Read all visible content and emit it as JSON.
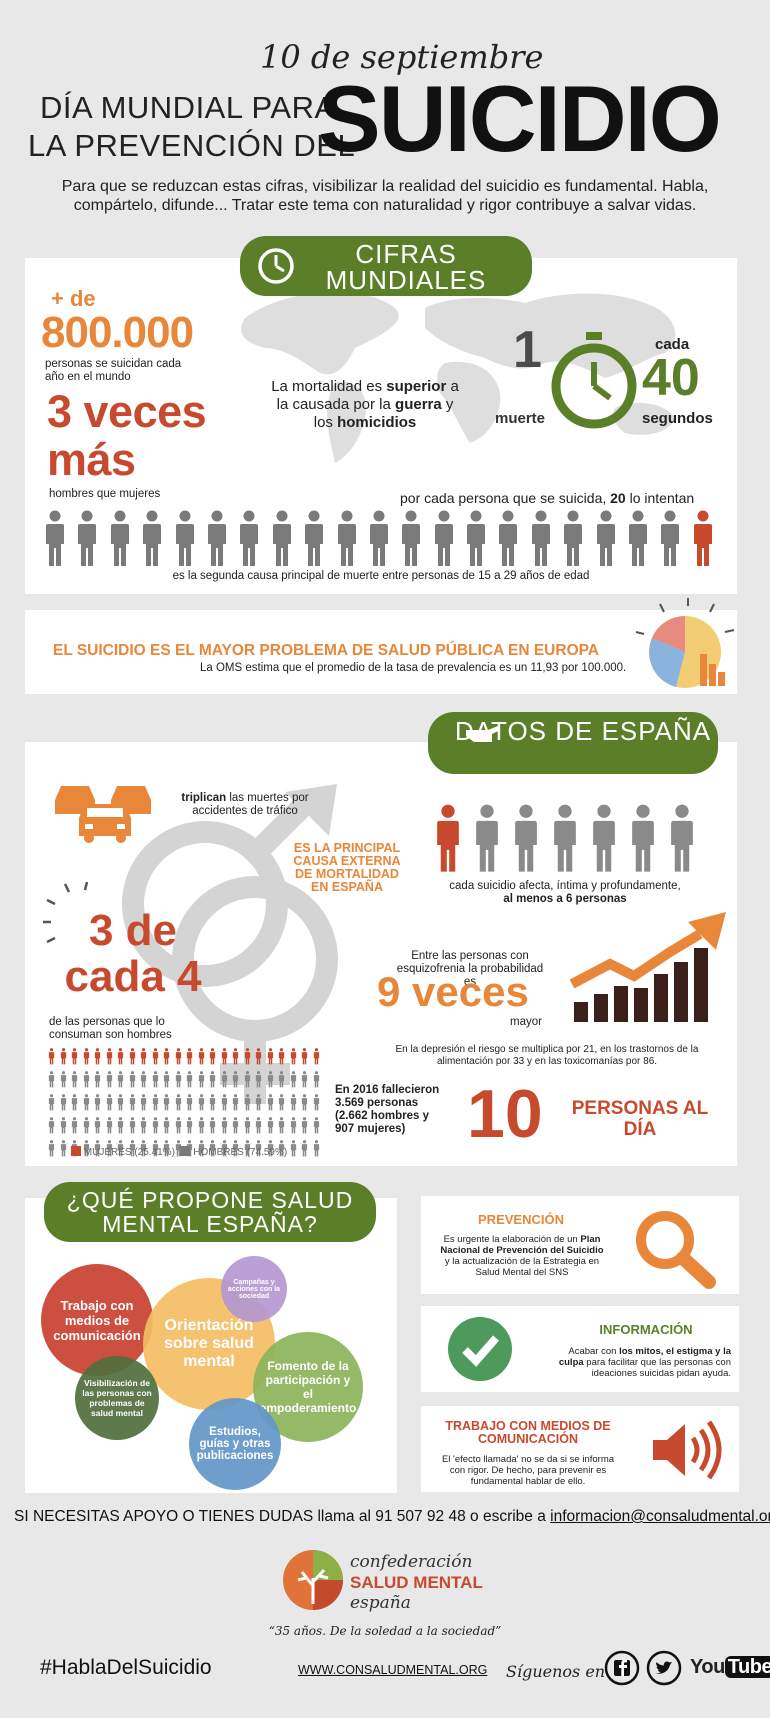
{
  "header": {
    "date": "10 de septiembre",
    "title_line1": "DÍA MUNDIAL PARA",
    "title_line2": "LA PREVENCIÓN DEL",
    "title_big": "SUICIDIO",
    "intro": "Para que se reduzcan estas cifras, visibilizar la realidad del suicidio es fundamental.  Habla, compártelo, difunde... Tratar este tema con naturalidad y rigor contribuye a salvar vidas."
  },
  "world": {
    "pill": "CIFRAS MUNDIALES",
    "plus_de": "+ de",
    "big_number": "800.000",
    "big_number_caption": "personas se suicidan cada año en el mundo",
    "veces_big": "3 veces más",
    "veces_caption": "hombres que mujeres",
    "mortality_text_a": "La mortalidad es ",
    "mortality_superior": "superior",
    "mortality_text_b": " a la causada por la ",
    "mortality_guerra": "guerra",
    "mortality_text_c": " y los ",
    "mortality_homicidios": "homicidios",
    "one": "1",
    "muerte": "muerte",
    "cada": "cada",
    "forty": "40",
    "segundos": "segundos",
    "attempts_a": "por cada persona que se suicida, ",
    "attempts_num": "20",
    "attempts_b": " lo intentan",
    "second_cause": "es la segunda causa principal de muerte entre personas de 15 a 29 años de edad"
  },
  "europe": {
    "headline": "EL SUICIDIO ES EL MAYOR PROBLEMA DE SALUD PÚBLICA EN EUROPA",
    "sub": "La OMS estima que el promedio de la tasa de prevalencia es un 11,93 por 100.000."
  },
  "spain": {
    "pill": "DATOS DE ESPAÑA",
    "triplican_b": "triplican",
    "triplican_rest": " las muertes por accidentes de tráfico",
    "principal": "ES LA PRINCIPAL CAUSA EXTERNA DE MORTALIDAD EN ESPAÑA",
    "affects_a": "cada suicidio afecta, íntima y profundamente,",
    "affects_b": "al menos a 6 personas",
    "three_of_four": "3 de cada 4",
    "three_caption": "de las personas que lo consuman son hombres",
    "schizo_a": "Entre las personas con esquizofrenia la probabilidad es",
    "nine_veces": "9 veces",
    "mayor": "mayor",
    "depresion": "En la depresión el riesgo se multiplica por 21, en los trastornos de la alimentación por 33 y en las toxicomanías por 86.",
    "deaths_2016": "En 2016 fallecieron 3.569 personas (2.662 hombres y 907 mujeres)",
    "ten": "10",
    "per_day": "PERSONAS AL DÍA",
    "legend_mujeres": "MUJERES (25.41%)",
    "legend_hombres": "HOMBRES (74.59%)",
    "women_share": 0.2541
  },
  "propose": {
    "pill": "¿QUÉ PROPONE SALUD MENTAL ESPAÑA?",
    "bubbles": {
      "trabajo": "Trabajo con medios de comunicación",
      "orientacion": "Orientación sobre salud mental",
      "campanas": "Campañas y acciones con la sociedad",
      "fomento": "Fomento de la participación y el empoderamiento",
      "visibilizacion": "Visibilización de las personas con problemas de salud mental",
      "estudios": "Estudios, guías y otras publicaciones"
    },
    "prevencion_title": "PREVENCIÓN",
    "prevencion_a": "Es urgente la elaboración de un ",
    "prevencion_b": "Plan Nacional de Prevención del Suicidio",
    "prevencion_c": " y la actualización de la Estrategia en Salud Mental del SNS",
    "informacion_title": "INFORMACIÓN",
    "informacion_a": "Acabar con ",
    "informacion_b": "los mitos, el estigma y la culpa",
    "informacion_c": " para facilitar que las personas con ideaciones suicidas pidan ayuda.",
    "medios_title": "TRABAJO CON MEDIOS DE COMUNICACIÓN",
    "medios_text": "El 'efecto llamada' no  se da  si se informa con rigor. De hecho, para prevenir es fundamental hablar de ello."
  },
  "contact": {
    "prefix": "SI NECESITAS APOYO O TIENES DUDAS llama al ",
    "phone": "91 507 92 48",
    "middle": " o escribe a ",
    "email": "informacion@consaludmental.org"
  },
  "footer": {
    "logo_line1": "confederación",
    "logo_line2": "SALUD MENTAL",
    "logo_line3": "españa",
    "motto": "“35 años. De la soledad a la sociedad”",
    "hashtag": "#HablaDelSuicidio",
    "website": "WWW.CONSALUDMENTAL.ORG",
    "siguenos": "Síguenos en",
    "youtube_a": "You",
    "youtube_b": "Tube"
  },
  "colors": {
    "green": "#5a7f28",
    "orange": "#e8873a",
    "red": "#c84a2e",
    "grey": "#7a7a7a"
  }
}
